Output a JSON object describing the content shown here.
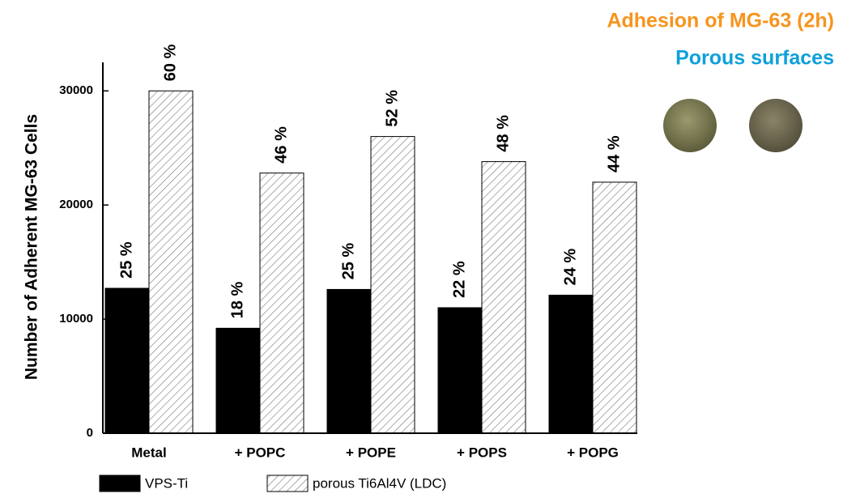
{
  "chart_data": {
    "type": "bar",
    "title": "Adhesion of MG-63 (2h)",
    "subtitle": "Porous surfaces",
    "y_label": "Number of Adherent MG-63 Cells",
    "categories": [
      "Metal",
      "+ POPC",
      "+ POPE",
      "+ POPS",
      "+ POPG"
    ],
    "series": [
      {
        "name": "VPS-Ti",
        "color": "#000000",
        "values": [
          12700,
          9200,
          12600,
          11000,
          12100
        ],
        "annotations": [
          "25 %",
          "18 %",
          "25 %",
          "22 %",
          "24 %"
        ]
      },
      {
        "name": "porous Ti6Al4V (LDC)",
        "color": "#ffffff",
        "hatch": true,
        "values": [
          30000,
          22800,
          26000,
          23800,
          22000
        ],
        "annotations": [
          "60 %",
          "46 %",
          "52 %",
          "48 %",
          "44 %"
        ]
      }
    ],
    "ylim": [
      0,
      32500
    ],
    "yticks": [
      0,
      10000,
      20000,
      30000
    ],
    "grid": false,
    "legend": "bottom"
  }
}
